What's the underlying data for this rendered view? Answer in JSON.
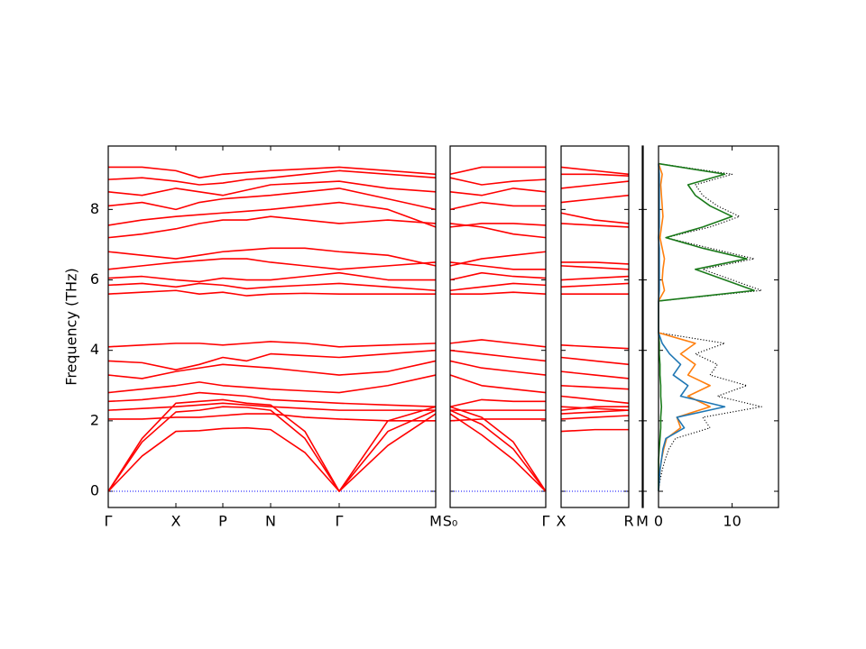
{
  "chart_data": [
    {
      "type": "line",
      "ylabel": "Frequency (THz)",
      "show_ytick_labels": true,
      "color": "#ff0000",
      "zero_line_color": "#0000ff",
      "ylim": [
        -0.46,
        9.8
      ],
      "yticks": [
        0,
        2,
        4,
        6,
        8
      ],
      "xlim": [
        0,
        3.63
      ],
      "xticks": [
        {
          "value": 0,
          "label": "Γ"
        },
        {
          "value": 0.75,
          "label": "X"
        },
        {
          "value": 1.27,
          "label": "P"
        },
        {
          "value": 1.8,
          "label": "N"
        },
        {
          "value": 2.56,
          "label": "Γ"
        },
        {
          "value": 3.63,
          "label": "M"
        }
      ],
      "x": [
        0,
        0.375,
        0.75,
        1.01,
        1.27,
        1.535,
        1.8,
        2.18,
        2.56,
        3.1,
        3.63
      ],
      "series": [
        {
          "values": [
            0,
            1.0,
            1.7,
            1.72,
            1.78,
            1.8,
            1.75,
            1.1,
            0,
            1.3,
            2.2
          ]
        },
        {
          "values": [
            0,
            1.4,
            2.25,
            2.3,
            2.4,
            2.38,
            2.3,
            1.5,
            0,
            1.7,
            2.3
          ]
        },
        {
          "values": [
            0,
            1.5,
            2.5,
            2.55,
            2.6,
            2.5,
            2.45,
            1.7,
            0,
            2.0,
            2.4
          ]
        },
        {
          "values": [
            2.05,
            2.05,
            2.1,
            2.1,
            2.15,
            2.2,
            2.2,
            2.1,
            2.05,
            2.0,
            2.0
          ]
        },
        {
          "values": [
            2.3,
            2.35,
            2.4,
            2.45,
            2.5,
            2.45,
            2.4,
            2.35,
            2.3,
            2.3,
            2.3
          ]
        },
        {
          "values": [
            2.55,
            2.6,
            2.7,
            2.8,
            2.75,
            2.7,
            2.6,
            2.55,
            2.5,
            2.45,
            2.4
          ]
        },
        {
          "values": [
            2.8,
            2.9,
            3.0,
            3.1,
            3.0,
            2.95,
            2.9,
            2.85,
            2.8,
            3.0,
            3.3
          ]
        },
        {
          "values": [
            3.3,
            3.2,
            3.4,
            3.5,
            3.6,
            3.55,
            3.5,
            3.4,
            3.3,
            3.4,
            3.7
          ]
        },
        {
          "values": [
            3.7,
            3.65,
            3.45,
            3.6,
            3.8,
            3.7,
            3.9,
            3.85,
            3.8,
            3.9,
            4.0
          ]
        },
        {
          "values": [
            4.1,
            4.15,
            4.2,
            4.2,
            4.15,
            4.2,
            4.25,
            4.2,
            4.1,
            4.15,
            4.2
          ]
        },
        {
          "values": [
            5.6,
            5.65,
            5.7,
            5.6,
            5.65,
            5.55,
            5.6,
            5.62,
            5.6,
            5.6,
            5.6
          ]
        },
        {
          "values": [
            5.85,
            5.9,
            5.8,
            5.9,
            5.85,
            5.75,
            5.8,
            5.85,
            5.9,
            5.8,
            5.7
          ]
        },
        {
          "values": [
            6.05,
            6.1,
            6.0,
            5.95,
            6.05,
            6.0,
            6.0,
            6.1,
            6.2,
            6.0,
            6.0
          ]
        },
        {
          "values": [
            6.3,
            6.4,
            6.5,
            6.55,
            6.6,
            6.6,
            6.5,
            6.4,
            6.3,
            6.4,
            6.5
          ]
        },
        {
          "values": [
            6.8,
            6.7,
            6.6,
            6.7,
            6.8,
            6.85,
            6.9,
            6.9,
            6.8,
            6.7,
            6.4
          ]
        },
        {
          "values": [
            7.2,
            7.3,
            7.45,
            7.6,
            7.7,
            7.7,
            7.8,
            7.7,
            7.6,
            7.7,
            7.6
          ]
        },
        {
          "values": [
            7.55,
            7.7,
            7.8,
            7.85,
            7.9,
            7.95,
            8.0,
            8.1,
            8.2,
            8.0,
            7.5
          ]
        },
        {
          "values": [
            8.1,
            8.2,
            8.0,
            8.2,
            8.3,
            8.35,
            8.4,
            8.5,
            8.6,
            8.3,
            8.0
          ]
        },
        {
          "values": [
            8.5,
            8.4,
            8.6,
            8.5,
            8.4,
            8.55,
            8.7,
            8.75,
            8.8,
            8.6,
            8.5
          ]
        },
        {
          "values": [
            8.85,
            8.9,
            8.8,
            8.7,
            8.75,
            8.85,
            8.9,
            9.0,
            9.1,
            9.0,
            8.9
          ]
        },
        {
          "values": [
            9.2,
            9.2,
            9.1,
            8.9,
            9.0,
            9.05,
            9.1,
            9.15,
            9.2,
            9.1,
            9.0
          ]
        }
      ]
    },
    {
      "type": "line",
      "show_ytick_labels": false,
      "color": "#ff0000",
      "zero_line_color": "#0000ff",
      "ylim": [
        -0.46,
        9.8
      ],
      "yticks": [
        0,
        2,
        4,
        6,
        8
      ],
      "xlim": [
        0,
        1.06
      ],
      "xticks": [
        {
          "value": 0,
          "label": "S₀"
        },
        {
          "value": 1.06,
          "label": "Γ"
        }
      ],
      "x": [
        0,
        0.35,
        0.7,
        1.06
      ],
      "series": [
        {
          "values": [
            2.2,
            1.6,
            0.9,
            0
          ]
        },
        {
          "values": [
            2.3,
            1.9,
            1.2,
            0
          ]
        },
        {
          "values": [
            2.4,
            2.1,
            1.4,
            0
          ]
        },
        {
          "values": [
            2.0,
            2.05,
            2.05,
            2.05
          ]
        },
        {
          "values": [
            2.3,
            2.3,
            2.3,
            2.3
          ]
        },
        {
          "values": [
            2.4,
            2.6,
            2.55,
            2.55
          ]
        },
        {
          "values": [
            3.3,
            3.0,
            2.9,
            2.8
          ]
        },
        {
          "values": [
            3.7,
            3.5,
            3.4,
            3.3
          ]
        },
        {
          "values": [
            4.0,
            3.9,
            3.8,
            3.7
          ]
        },
        {
          "values": [
            4.2,
            4.3,
            4.2,
            4.1
          ]
        },
        {
          "values": [
            5.6,
            5.6,
            5.65,
            5.6
          ]
        },
        {
          "values": [
            5.7,
            5.8,
            5.9,
            5.85
          ]
        },
        {
          "values": [
            6.0,
            6.2,
            6.1,
            6.05
          ]
        },
        {
          "values": [
            6.5,
            6.4,
            6.3,
            6.3
          ]
        },
        {
          "values": [
            6.4,
            6.6,
            6.7,
            6.8
          ]
        },
        {
          "values": [
            7.6,
            7.5,
            7.3,
            7.2
          ]
        },
        {
          "values": [
            7.5,
            7.6,
            7.6,
            7.55
          ]
        },
        {
          "values": [
            8.0,
            8.2,
            8.1,
            8.1
          ]
        },
        {
          "values": [
            8.5,
            8.4,
            8.6,
            8.5
          ]
        },
        {
          "values": [
            8.9,
            8.7,
            8.8,
            8.85
          ]
        },
        {
          "values": [
            9.0,
            9.2,
            9.2,
            9.2
          ]
        }
      ]
    },
    {
      "type": "line",
      "show_ytick_labels": false,
      "color": "#ff0000",
      "zero_line_color": "#0000ff",
      "ylim": [
        -0.46,
        9.8
      ],
      "yticks": [
        0,
        2,
        4,
        6,
        8
      ],
      "xlim": [
        0,
        0.75
      ],
      "xticks": [
        {
          "value": 0,
          "label": "X"
        },
        {
          "value": 0.75,
          "label": "R"
        }
      ],
      "x": [
        0,
        0.375,
        0.75
      ],
      "series": [
        {
          "values": [
            1.7,
            1.75,
            1.75
          ]
        },
        {
          "values": [
            2.2,
            2.25,
            2.3
          ]
        },
        {
          "values": [
            2.4,
            2.35,
            2.3
          ]
        },
        {
          "values": [
            2.05,
            2.1,
            2.15
          ]
        },
        {
          "values": [
            2.3,
            2.4,
            2.4
          ]
        },
        {
          "values": [
            2.7,
            2.6,
            2.5
          ]
        },
        {
          "values": [
            3.0,
            2.95,
            2.9
          ]
        },
        {
          "values": [
            3.4,
            3.3,
            3.2
          ]
        },
        {
          "values": [
            3.8,
            3.7,
            3.6
          ]
        },
        {
          "values": [
            4.15,
            4.1,
            4.05
          ]
        },
        {
          "values": [
            5.6,
            5.6,
            5.6
          ]
        },
        {
          "values": [
            5.8,
            5.85,
            5.9
          ]
        },
        {
          "values": [
            6.0,
            6.05,
            6.1
          ]
        },
        {
          "values": [
            6.4,
            6.35,
            6.3
          ]
        },
        {
          "values": [
            6.5,
            6.5,
            6.45
          ]
        },
        {
          "values": [
            7.6,
            7.55,
            7.5
          ]
        },
        {
          "values": [
            7.9,
            7.7,
            7.6
          ]
        },
        {
          "values": [
            8.2,
            8.3,
            8.4
          ]
        },
        {
          "values": [
            8.6,
            8.7,
            8.8
          ]
        },
        {
          "values": [
            9.0,
            9.0,
            8.95
          ]
        },
        {
          "values": [
            9.2,
            9.1,
            9.0
          ]
        }
      ]
    },
    {
      "type": "line",
      "show_ytick_labels": false,
      "color": "#ff0000",
      "ylim": [
        -0.46,
        9.8
      ],
      "yticks": [
        0,
        2,
        4,
        6,
        8
      ],
      "xlim": [
        0,
        1
      ],
      "xticks": [
        {
          "value": 0,
          "label": "M"
        }
      ],
      "x": [],
      "series": []
    },
    {
      "type": "line",
      "orientation": "horizontal",
      "show_ytick_labels": false,
      "ylim": [
        -0.46,
        9.8
      ],
      "yticks": [
        0,
        2,
        4,
        6,
        8
      ],
      "xlim": [
        0,
        16.3
      ],
      "xticks": [
        0,
        10
      ],
      "y": [
        0,
        0.3,
        0.6,
        0.9,
        1.2,
        1.5,
        1.8,
        2.1,
        2.4,
        2.7,
        3.0,
        3.3,
        3.6,
        3.9,
        4.2,
        4.5,
        4.8,
        5.1,
        5.4,
        5.7,
        6.0,
        6.3,
        6.6,
        6.9,
        7.2,
        7.5,
        7.8,
        8.1,
        8.4,
        8.7,
        9.0,
        9.3
      ],
      "series": [
        {
          "color": "#000000",
          "linestyle": "dotted",
          "values": [
            0,
            0.2,
            0.5,
            0.9,
            1.4,
            2.3,
            7,
            6,
            14,
            8,
            12,
            7,
            8,
            5,
            9,
            0,
            0,
            0,
            0,
            14,
            10,
            6,
            13,
            7,
            1,
            7,
            11,
            8,
            6,
            5,
            10,
            0
          ]
        },
        {
          "color": "#1a7a1a",
          "linestyle": "solid",
          "values": [
            0,
            0,
            0,
            0,
            0.1,
            0.2,
            0.3,
            0.3,
            0.4,
            0.3,
            0.3,
            0.2,
            0.2,
            0.1,
            0.1,
            0,
            0,
            0,
            0,
            13,
            9,
            5,
            12,
            6,
            1,
            6,
            10,
            7,
            5,
            4,
            9,
            0
          ]
        },
        {
          "color": "#ff7f0e",
          "linestyle": "solid",
          "values": [
            0,
            0.1,
            0.2,
            0.4,
            0.7,
            1.1,
            3,
            2.5,
            7,
            4,
            7,
            4,
            5,
            3,
            5,
            0,
            0,
            0,
            0,
            0.8,
            0.5,
            0.6,
            0.8,
            0.5,
            0.2,
            0.4,
            0.6,
            0.5,
            0.4,
            0.3,
            0.5,
            0
          ]
        },
        {
          "color": "#1f77b4",
          "linestyle": "solid",
          "values": [
            0,
            0.1,
            0.2,
            0.4,
            0.6,
            1.0,
            3.5,
            2.5,
            9,
            3,
            4,
            2,
            3,
            1.5,
            0.5,
            0,
            0,
            0,
            0,
            0.1,
            0.1,
            0.1,
            0.1,
            0.1,
            0,
            0.1,
            0.1,
            0.1,
            0.1,
            0.1,
            0.1,
            0
          ]
        }
      ]
    }
  ]
}
